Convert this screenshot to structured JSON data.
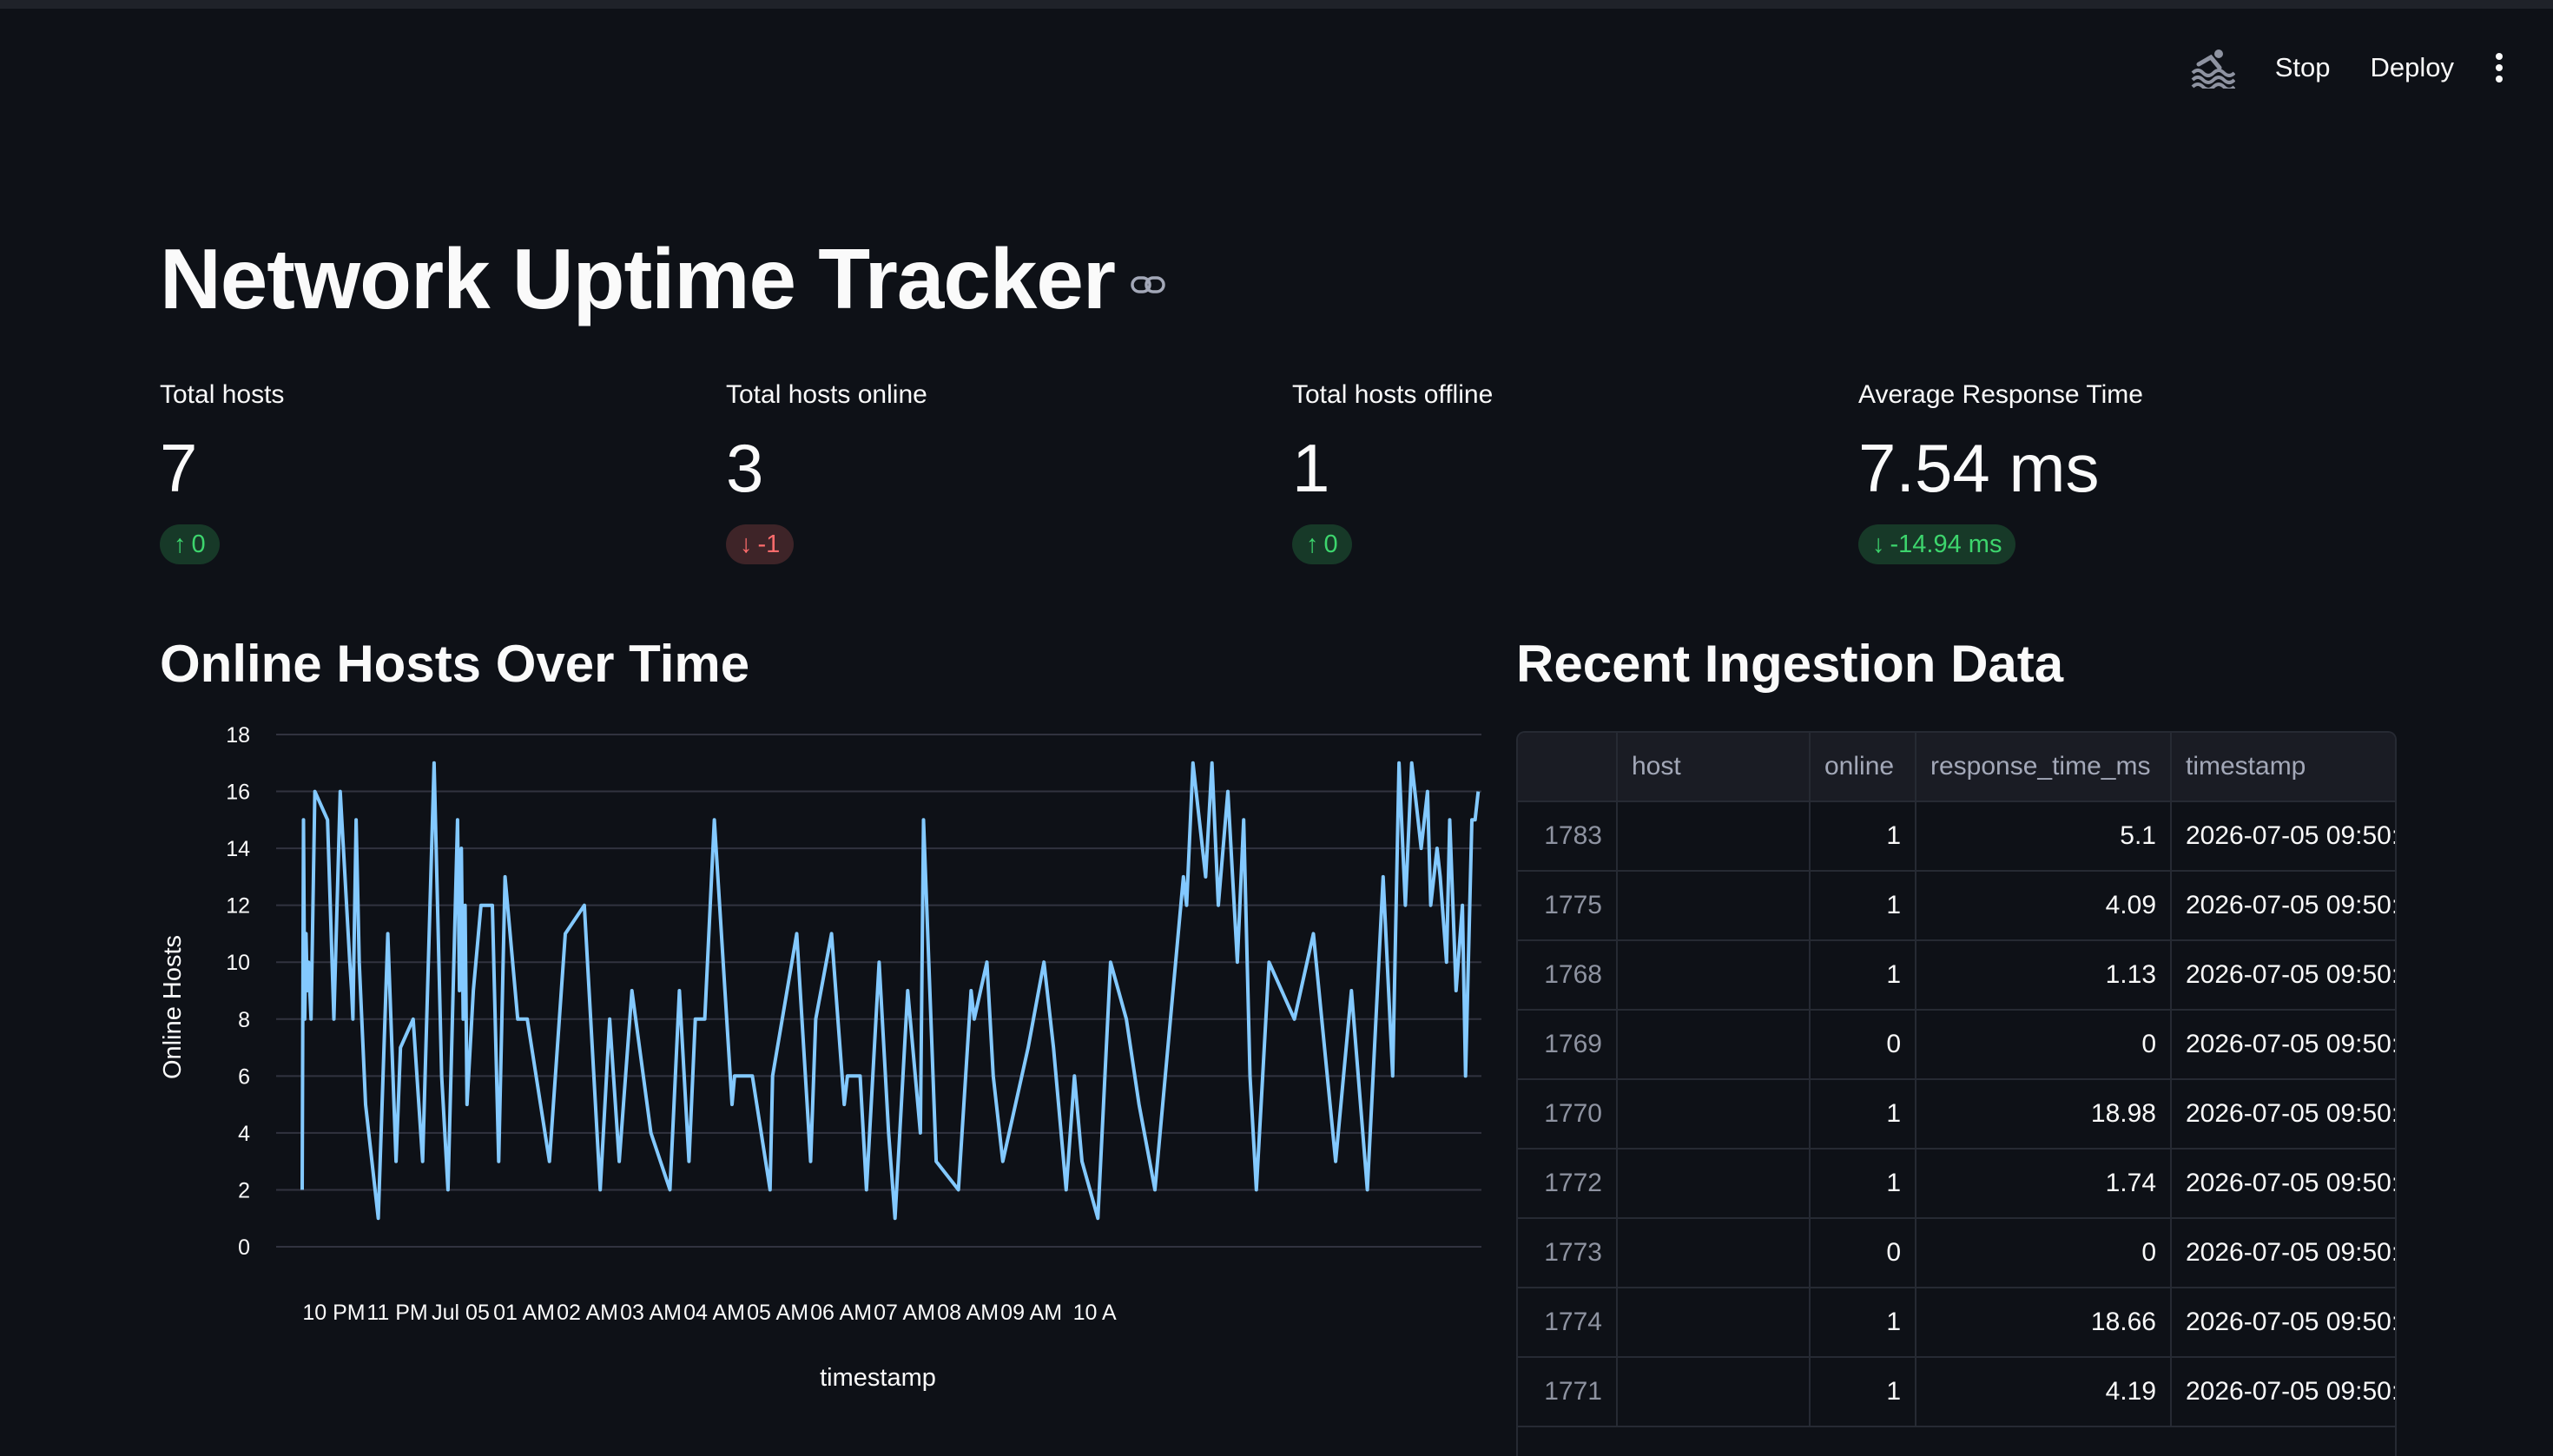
{
  "toolbar": {
    "stop_label": "Stop",
    "deploy_label": "Deploy",
    "running_icon": "swimmer-icon",
    "menu_icon": "kebab-menu-icon"
  },
  "page": {
    "title": "Network Uptime Tracker"
  },
  "metrics": [
    {
      "label": "Total hosts",
      "value": "7",
      "delta": "0",
      "direction": "up",
      "delta_color": "#3dd56d"
    },
    {
      "label": "Total hosts online",
      "value": "3",
      "delta": "-1",
      "direction": "down",
      "delta_color": "#ff6c6c"
    },
    {
      "label": "Total hosts offline",
      "value": "1",
      "delta": "0",
      "direction": "up",
      "delta_color": "#3dd56d"
    },
    {
      "label": "Average Response Time",
      "value": "7.54 ms",
      "delta": "-14.94 ms",
      "direction": "down",
      "delta_color": "#3dd56d"
    }
  ],
  "chart_section": {
    "title": "Online Hosts Over Time"
  },
  "table_section": {
    "title": "Recent Ingestion Data"
  },
  "chart_data": {
    "type": "line",
    "title": "",
    "xlabel": "timestamp",
    "ylabel": "Online Hosts",
    "ylim": [
      0,
      18
    ],
    "yticks": [
      0,
      2,
      4,
      6,
      8,
      10,
      12,
      14,
      16,
      18
    ],
    "xticks": [
      "10 PM",
      "11 PM",
      "Jul 05",
      "01 AM",
      "02 AM",
      "03 AM",
      "04 AM",
      "05 AM",
      "06 AM",
      "07 AM",
      "08 AM",
      "09 AM",
      "10 A"
    ],
    "x_hours": [
      0.0,
      0.02,
      0.04,
      0.06,
      0.08,
      0.1,
      0.14,
      0.2,
      0.4,
      0.5,
      0.6,
      0.75,
      0.78,
      0.8,
      0.85,
      0.9,
      1.0,
      1.2,
      1.35,
      1.48,
      1.55,
      1.75,
      1.9,
      2.08,
      2.2,
      2.3,
      2.45,
      2.48,
      2.51,
      2.54,
      2.57,
      2.6,
      2.7,
      2.82,
      3.0,
      3.1,
      3.2,
      3.4,
      3.55,
      3.9,
      4.15,
      4.45,
      4.7,
      4.85,
      5.0,
      5.2,
      5.5,
      5.8,
      5.95,
      6.1,
      6.2,
      6.35,
      6.5,
      6.78,
      6.82,
      7.1,
      7.38,
      7.42,
      7.8,
      8.02,
      8.1,
      8.35,
      8.55,
      8.6,
      8.8,
      8.9,
      9.1,
      9.25,
      9.35,
      9.55,
      9.75,
      9.8,
      10.0,
      10.35,
      10.55,
      10.6,
      10.8,
      10.9,
      11.05,
      11.45,
      11.7,
      11.85,
      12.05,
      12.18,
      12.3,
      12.55,
      12.75,
      13.0,
      13.2,
      13.45,
      13.9,
      13.95,
      14.05,
      14.25,
      14.35,
      14.45,
      14.6,
      14.75,
      14.85,
      14.95,
      15.05,
      15.25,
      15.45,
      15.65,
      15.95,
      16.3,
      16.55,
      16.8,
      17.05,
      17.2,
      17.3,
      17.4,
      17.5,
      17.6,
      17.65,
      17.75,
      17.8,
      17.9,
      17.95,
      18.05,
      18.1,
      18.2,
      18.3,
      18.35,
      18.45,
      18.5,
      18.55
    ],
    "values": [
      2,
      15,
      8,
      11,
      9,
      10,
      8,
      16,
      15,
      8,
      16,
      10,
      9,
      8,
      15,
      10,
      5,
      1,
      11,
      3,
      7,
      8,
      3,
      17,
      6,
      2,
      15,
      9,
      14,
      8,
      12,
      5,
      9,
      12,
      12,
      3,
      13,
      8,
      8,
      3,
      11,
      12,
      2,
      8,
      3,
      9,
      4,
      2,
      9,
      3,
      8,
      8,
      15,
      5,
      6,
      6,
      2,
      6,
      11,
      3,
      8,
      11,
      5,
      6,
      6,
      2,
      10,
      4,
      1,
      9,
      4,
      15,
      3,
      2,
      9,
      8,
      10,
      6,
      3,
      7,
      10,
      7,
      2,
      6,
      3,
      1,
      10,
      8,
      5,
      2,
      13,
      12,
      17,
      13,
      17,
      12,
      16,
      10,
      15,
      6,
      2,
      10,
      9,
      8,
      11,
      3,
      9,
      2,
      13,
      6,
      17,
      12,
      17,
      15,
      14,
      16,
      12,
      14,
      13,
      10,
      15,
      9,
      12,
      6,
      15,
      15,
      16
    ],
    "series_color": "#83c9ff",
    "grid": true,
    "legend": "none"
  },
  "table": {
    "columns": [
      "",
      "host",
      "online",
      "response_time_ms",
      "timestamp"
    ],
    "rows": [
      [
        "1783",
        "",
        "1",
        "5.1",
        "2026-07-05 09:50:"
      ],
      [
        "1775",
        "",
        "1",
        "4.09",
        "2026-07-05 09:50:"
      ],
      [
        "1768",
        "",
        "1",
        "1.13",
        "2026-07-05 09:50:"
      ],
      [
        "1769",
        "",
        "0",
        "0",
        "2026-07-05 09:50:"
      ],
      [
        "1770",
        "",
        "1",
        "18.98",
        "2026-07-05 09:50:"
      ],
      [
        "1772",
        "",
        "1",
        "1.74",
        "2026-07-05 09:50:"
      ],
      [
        "1773",
        "",
        "0",
        "0",
        "2026-07-05 09:50:"
      ],
      [
        "1774",
        "",
        "1",
        "18.66",
        "2026-07-05 09:50:"
      ],
      [
        "1771",
        "",
        "1",
        "4.19",
        "2026-07-05 09:50:"
      ]
    ]
  }
}
